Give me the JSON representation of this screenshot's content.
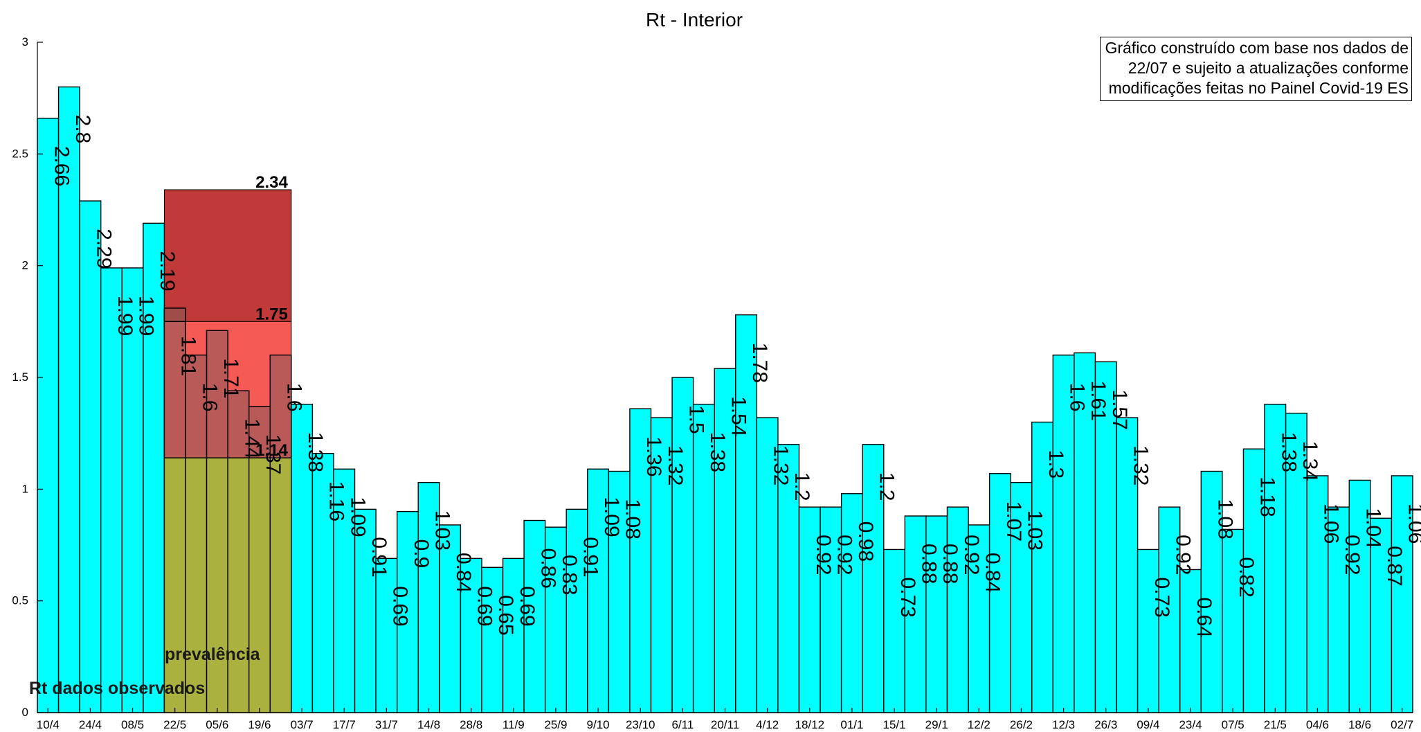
{
  "chart_data": {
    "type": "bar",
    "title": "Rt - Interior",
    "ylim": [
      0,
      3
    ],
    "yticks": [
      0,
      0.5,
      1,
      1.5,
      2,
      2.5,
      3
    ],
    "xtick_labels": [
      "10/4",
      "24/4",
      "08/5",
      "22/5",
      "05/6",
      "19/6",
      "03/7",
      "17/7",
      "31/7",
      "14/8",
      "28/8",
      "11/9",
      "25/9",
      "9/10",
      "23/10",
      "6/11",
      "20/11",
      "4/12",
      "18/12",
      "01/1",
      "15/1",
      "29/1",
      "12/2",
      "26/2",
      "12/3",
      "26/3",
      "09/4",
      "23/4",
      "07/5",
      "21/5",
      "04/6",
      "18/6",
      "02/7"
    ],
    "values": [
      2.66,
      2.8,
      2.29,
      1.99,
      1.99,
      2.19,
      1.81,
      1.6,
      1.71,
      1.44,
      1.37,
      1.6,
      1.38,
      1.16,
      1.09,
      0.91,
      0.69,
      0.9,
      1.03,
      0.84,
      0.69,
      0.65,
      0.69,
      0.86,
      0.83,
      0.91,
      1.09,
      1.08,
      1.36,
      1.32,
      1.5,
      1.38,
      1.54,
      1.78,
      1.32,
      1.2,
      0.92,
      0.92,
      0.98,
      1.2,
      0.73,
      0.88,
      0.88,
      0.92,
      0.84,
      1.07,
      1.03,
      1.3,
      1.6,
      1.61,
      1.57,
      1.32,
      0.73,
      0.92,
      0.64,
      1.08,
      0.82,
      1.18,
      1.38,
      1.34,
      1.06,
      0.92,
      1.04,
      0.87,
      1.06
    ],
    "value_labels": [
      "2.66",
      "2.8",
      "2.29",
      "1.99",
      "1.99",
      "2.19",
      "1.81",
      "1.6",
      "1.71",
      "1.44",
      "1.37",
      "1.6",
      "1.38",
      "1.16",
      "1.09",
      "0.91",
      "0.69",
      "0.9",
      "1.03",
      "0.84",
      "0.69",
      "0.65",
      "0.69",
      "0.86",
      "0.83",
      "0.91",
      "1.09",
      "1.08",
      "1.36",
      "1.32",
      "1.5",
      "1.38",
      "1.54",
      "1.78",
      "1.32",
      "1.2",
      "0.92",
      "0.92",
      "0.98",
      "1.2",
      "0.73",
      "0.88",
      "0.88",
      "0.92",
      "0.84",
      "1.07",
      "1.03",
      "1.3",
      "1.6",
      "1.61",
      "1.57",
      "1.32",
      "0.73",
      "0.92",
      "0.64",
      "1.08",
      "0.82",
      "1.18",
      "1.38",
      "1.34",
      "1.06",
      "0.92",
      "1.04",
      "0.87",
      "1.06"
    ],
    "prevalence_bands": {
      "first_index": 6,
      "last_index": 11,
      "levels": [
        {
          "value": 2.34,
          "label": "2.34",
          "color": "#c03a3a"
        },
        {
          "value": 1.75,
          "label": "1.75",
          "color": "#f55a54"
        },
        {
          "value": 1.14,
          "label": "1.14",
          "color": "#b3b13c"
        }
      ]
    },
    "area_labels": {
      "prevalence": "prevalência",
      "observed": "Rt dados observados"
    },
    "note_lines": [
      "Gráfico construído com base nos dados de",
      "22/07 e sujeito a atualizações conforme",
      "modificações feitas no Painel Covid-19 ES"
    ],
    "colors": {
      "bar": "#00ffff",
      "bar_edge": "#000000",
      "overlap_dark": "#9e4d48",
      "overlap_mid": "#b95a58",
      "overlap_low": "#aab13e"
    }
  }
}
